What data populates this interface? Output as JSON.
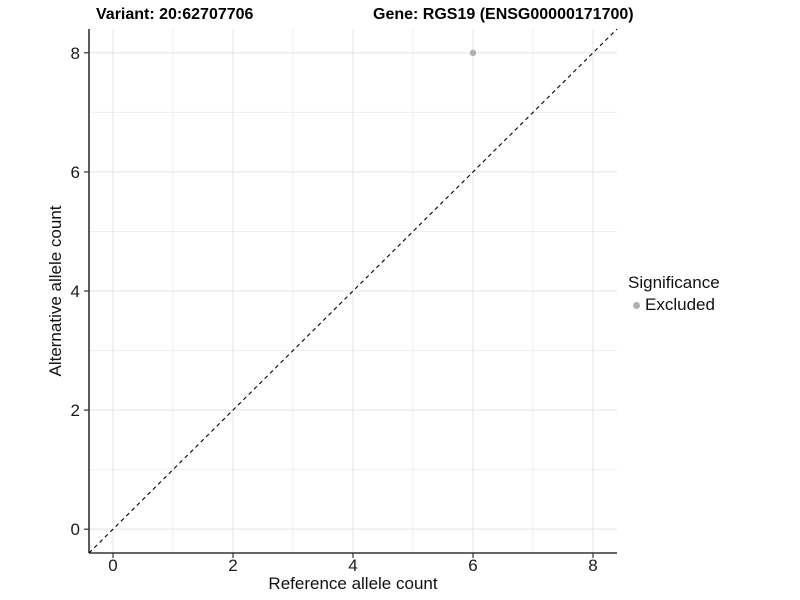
{
  "titles": {
    "variant": "Variant: 20:62707706",
    "gene": "Gene: RGS19 (ENSG00000171700)"
  },
  "axes": {
    "x_label": "Reference allele count",
    "y_label": "Alternative allele count",
    "x_ticks": [
      0,
      2,
      4,
      6,
      8
    ],
    "y_ticks": [
      0,
      2,
      4,
      6,
      8
    ],
    "x_minor": [
      1,
      3,
      5,
      7
    ],
    "y_minor": [
      1,
      3,
      5,
      7
    ]
  },
  "legend": {
    "title": "Significance",
    "items": [
      {
        "label": "Excluded",
        "color": "#b0b0b0"
      }
    ]
  },
  "colors": {
    "grid_major": "#e4e4e4",
    "grid_minor": "#efefef",
    "axis_line": "#333333",
    "tick_mark": "#333333",
    "axis_text": "#1a1a1a",
    "point": "#b0b0b0",
    "ref_line": "#000000",
    "background": "#ffffff"
  },
  "chart_data": {
    "type": "scatter",
    "title": "Variant: 20:62707706 | Gene: RGS19 (ENSG00000171700)",
    "xlabel": "Reference allele count",
    "ylabel": "Alternative allele count",
    "xlim": [
      -0.4,
      8.4
    ],
    "ylim": [
      -0.4,
      8.4
    ],
    "x_ticks": [
      0,
      2,
      4,
      6,
      8
    ],
    "y_ticks": [
      0,
      2,
      4,
      6,
      8
    ],
    "grid": "on",
    "legend_position": "right",
    "series": [
      {
        "name": "Excluded",
        "color": "#b0b0b0",
        "points": [
          {
            "x": 6,
            "y": 8
          }
        ]
      }
    ],
    "reference_line": {
      "kind": "identity",
      "style": "dashed",
      "color": "#000000",
      "from": [
        -0.4,
        -0.4
      ],
      "to": [
        8.4,
        8.4
      ]
    }
  }
}
